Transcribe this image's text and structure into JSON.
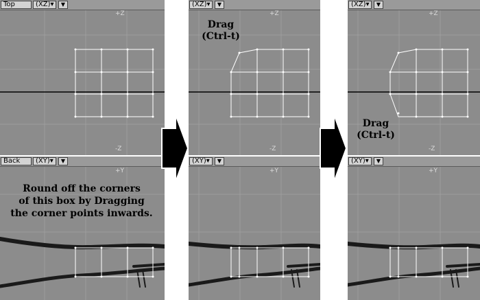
{
  "panels": [
    {
      "top_view": {
        "label": "Top",
        "projection": "(XZ)",
        "axis_top": "+Z",
        "axis_bottom": "-Z"
      },
      "bottom_view": {
        "label": "Back",
        "projection": "(XY)",
        "axis_top": "+Y"
      },
      "instruction": [
        "Round off the corners",
        "of this box by Dragging",
        "the corner points inwards."
      ]
    },
    {
      "top_view": {
        "projection": "(XZ)",
        "axis_top": "+Z",
        "axis_bottom": "-Z"
      },
      "bottom_view": {
        "projection": "(XY)",
        "axis_top": "+Y"
      },
      "annotation": [
        "Drag",
        "(Ctrl-t)"
      ]
    },
    {
      "top_view": {
        "projection": "(XZ)",
        "axis_top": "+Z",
        "axis_bottom": "-Z"
      },
      "bottom_view": {
        "projection": "(XY)",
        "axis_top": "+Y"
      },
      "annotation": [
        "Drag",
        "(Ctrl-t)"
      ]
    }
  ],
  "icons": {
    "dropdown": "chevron-down-icon",
    "step_arrow": "right-arrow-icon"
  },
  "colors": {
    "viewport_bg": "#8c8c8c",
    "grid_line": "#9d9d9d",
    "mesh": "#ffffff",
    "horizon": "#000000"
  }
}
